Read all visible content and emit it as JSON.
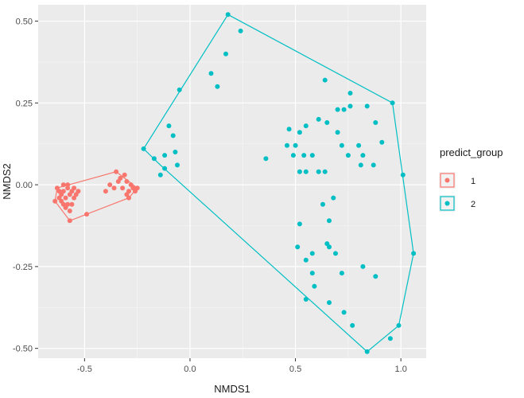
{
  "chart_data": {
    "type": "scatter",
    "xlabel": "NMDS1",
    "ylabel": "NMDS2",
    "xlim": [
      -0.72,
      1.12
    ],
    "ylim": [
      -0.53,
      0.55
    ],
    "x_ticks": [
      -0.5,
      0.0,
      0.5,
      1.0
    ],
    "x_tick_labels": [
      "-0.5",
      "0.0",
      "0.5",
      "1.0"
    ],
    "y_ticks": [
      -0.5,
      -0.25,
      0.0,
      0.25,
      0.5
    ],
    "y_tick_labels": [
      "-0.50",
      "-0.25",
      "0.00",
      "0.25",
      "0.50"
    ],
    "grid": true,
    "legend": {
      "title": "predict_group",
      "placement": "right",
      "entries": [
        "1",
        "2"
      ]
    },
    "series": [
      {
        "name": "1",
        "color": "#F8766D",
        "hull": [
          [
            -0.63,
            -0.01
          ],
          [
            -0.35,
            0.04
          ],
          [
            -0.25,
            -0.01
          ],
          [
            -0.29,
            -0.04
          ],
          [
            -0.49,
            -0.09
          ],
          [
            -0.57,
            -0.11
          ],
          [
            -0.64,
            -0.05
          ]
        ],
        "points": [
          [
            -0.63,
            -0.01
          ],
          [
            -0.62,
            -0.02
          ],
          [
            -0.61,
            -0.03
          ],
          [
            -0.6,
            -0.02
          ],
          [
            -0.59,
            -0.04
          ],
          [
            -0.58,
            -0.01
          ],
          [
            -0.57,
            -0.03
          ],
          [
            -0.56,
            -0.02
          ],
          [
            -0.55,
            -0.04
          ],
          [
            -0.6,
            0.0
          ],
          [
            -0.61,
            -0.05
          ],
          [
            -0.58,
            -0.06
          ],
          [
            -0.56,
            -0.06
          ],
          [
            -0.57,
            -0.08
          ],
          [
            -0.59,
            -0.07
          ],
          [
            -0.55,
            -0.01
          ],
          [
            -0.54,
            -0.03
          ],
          [
            -0.62,
            -0.04
          ],
          [
            -0.6,
            -0.06
          ],
          [
            -0.53,
            -0.02
          ],
          [
            -0.64,
            -0.05
          ],
          [
            -0.57,
            -0.11
          ],
          [
            -0.49,
            -0.09
          ],
          [
            -0.58,
            0.0
          ],
          [
            -0.35,
            0.04
          ],
          [
            -0.33,
            0.02
          ],
          [
            -0.31,
            0.03
          ],
          [
            -0.3,
            0.01
          ],
          [
            -0.28,
            0.0
          ],
          [
            -0.27,
            -0.01
          ],
          [
            -0.29,
            -0.02
          ],
          [
            -0.32,
            -0.01
          ],
          [
            -0.36,
            -0.01
          ],
          [
            -0.34,
            0.01
          ],
          [
            -0.3,
            -0.03
          ],
          [
            -0.29,
            -0.04
          ],
          [
            -0.25,
            -0.01
          ],
          [
            -0.26,
            -0.02
          ],
          [
            -0.38,
            0.0
          ],
          [
            -0.4,
            -0.02
          ]
        ]
      },
      {
        "name": "2",
        "color": "#00BFC4",
        "hull": [
          [
            0.18,
            0.52
          ],
          [
            0.96,
            0.25
          ],
          [
            1.06,
            -0.21
          ],
          [
            0.99,
            -0.43
          ],
          [
            0.84,
            -0.51
          ],
          [
            -0.14,
            0.06
          ],
          [
            -0.22,
            0.11
          ]
        ],
        "points": [
          [
            0.18,
            0.52
          ],
          [
            0.24,
            0.47
          ],
          [
            0.17,
            0.4
          ],
          [
            0.1,
            0.34
          ],
          [
            0.13,
            0.3
          ],
          [
            -0.05,
            0.29
          ],
          [
            -0.1,
            0.18
          ],
          [
            -0.08,
            0.15
          ],
          [
            -0.07,
            0.1
          ],
          [
            -0.12,
            0.09
          ],
          [
            -0.06,
            0.06
          ],
          [
            -0.17,
            0.08
          ],
          [
            -0.12,
            0.05
          ],
          [
            -0.14,
            0.03
          ],
          [
            -0.22,
            0.11
          ],
          [
            0.36,
            0.08
          ],
          [
            0.46,
            0.12
          ],
          [
            0.47,
            0.17
          ],
          [
            0.5,
            0.12
          ],
          [
            0.52,
            0.16
          ],
          [
            0.55,
            0.18
          ],
          [
            0.49,
            0.09
          ],
          [
            0.54,
            0.09
          ],
          [
            0.61,
            0.2
          ],
          [
            0.64,
            0.32
          ],
          [
            0.65,
            0.19
          ],
          [
            0.7,
            0.23
          ],
          [
            0.73,
            0.23
          ],
          [
            0.76,
            0.28
          ],
          [
            0.76,
            0.24
          ],
          [
            0.7,
            0.16
          ],
          [
            0.72,
            0.12
          ],
          [
            0.8,
            0.12
          ],
          [
            0.84,
            0.24
          ],
          [
            0.88,
            0.19
          ],
          [
            0.91,
            0.13
          ],
          [
            0.82,
            0.09
          ],
          [
            0.81,
            0.06
          ],
          [
            0.87,
            0.06
          ],
          [
            0.75,
            0.09
          ],
          [
            0.64,
            0.04
          ],
          [
            0.61,
            0.04
          ],
          [
            0.58,
            0.09
          ],
          [
            0.55,
            0.04
          ],
          [
            0.52,
            0.04
          ],
          [
            0.63,
            -0.06
          ],
          [
            0.68,
            -0.04
          ],
          [
            0.66,
            -0.11
          ],
          [
            0.52,
            -0.12
          ],
          [
            0.51,
            -0.19
          ],
          [
            0.65,
            -0.18
          ],
          [
            0.58,
            -0.21
          ],
          [
            0.66,
            -0.19
          ],
          [
            0.69,
            -0.21
          ],
          [
            0.55,
            -0.23
          ],
          [
            0.58,
            -0.27
          ],
          [
            0.59,
            -0.31
          ],
          [
            0.72,
            -0.27
          ],
          [
            0.82,
            -0.25
          ],
          [
            0.88,
            -0.28
          ],
          [
            0.55,
            -0.35
          ],
          [
            0.66,
            -0.36
          ],
          [
            0.73,
            -0.39
          ],
          [
            0.77,
            -0.43
          ],
          [
            0.84,
            -0.51
          ],
          [
            0.95,
            -0.47
          ],
          [
            0.99,
            -0.43
          ],
          [
            1.06,
            -0.21
          ],
          [
            1.01,
            0.03
          ],
          [
            0.96,
            0.25
          ]
        ]
      }
    ]
  }
}
